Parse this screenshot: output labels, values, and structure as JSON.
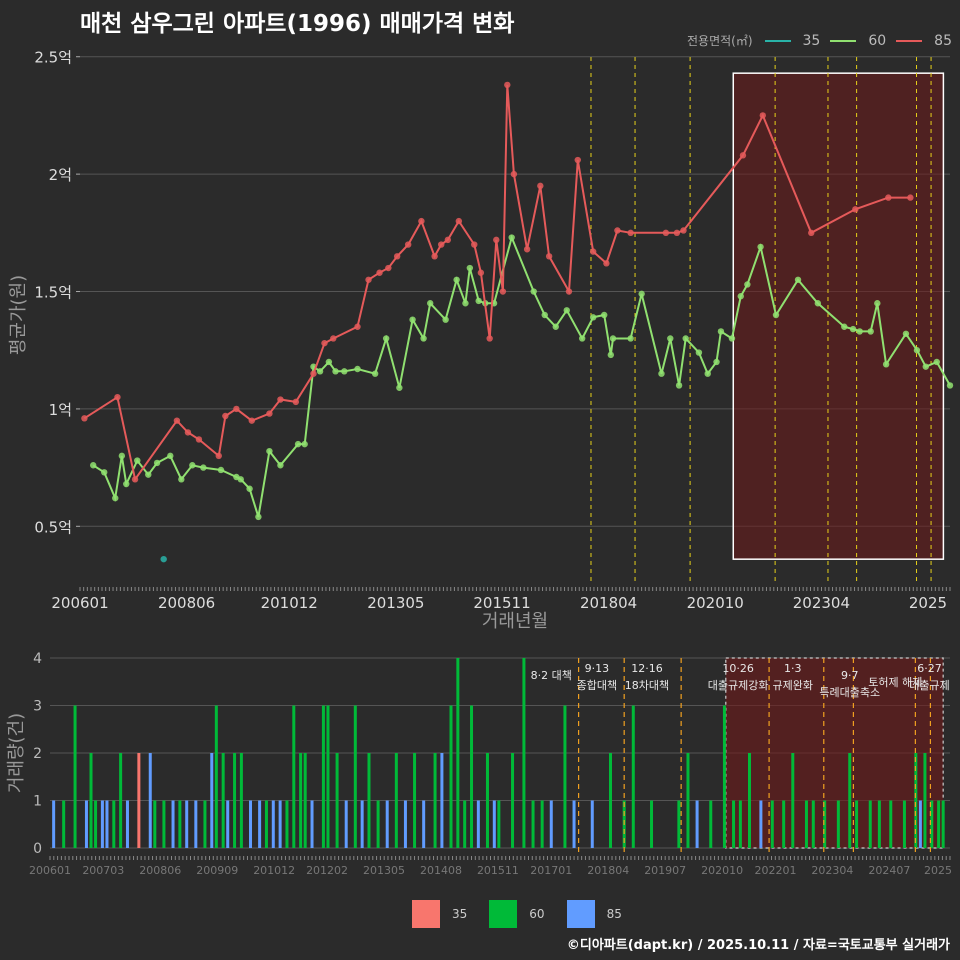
{
  "title": "매천 삼우그린 아파트(1996) 매매가격 변화",
  "footer": "©디아파트(dapt.kr) / 2025.10.11 / 자료=국토교통부 실거래가",
  "colors": {
    "35": "#29b3a8",
    "60": "#90e070",
    "85": "#e55a5a",
    "bar35": "#f8766d",
    "bar60": "#00ba38",
    "bar85": "#619cff"
  },
  "chart_data": [
    {
      "type": "line",
      "title": "매천 삼우그린 아파트(1996) 매매가격 변화",
      "xlabel": "거래년월",
      "ylabel": "평균가(원)",
      "xlim": [
        2006.0,
        2025.75
      ],
      "ylim": [
        0.25,
        2.55
      ],
      "ytick_labels": [
        {
          "v": 0.5,
          "label": "0.5억"
        },
        {
          "v": 1.0,
          "label": "1억"
        },
        {
          "v": 1.5,
          "label": "1.5억"
        },
        {
          "v": 2.0,
          "label": "2억"
        },
        {
          "v": 2.5,
          "label": "2.5억"
        }
      ],
      "xtick_labels": [
        {
          "v": 2006.0,
          "label": "200601"
        },
        {
          "v": 2008.42,
          "label": "200806"
        },
        {
          "v": 2010.75,
          "label": "201012"
        },
        {
          "v": 2013.17,
          "label": "201305"
        },
        {
          "v": 2015.58,
          "label": "201511"
        },
        {
          "v": 2018.0,
          "label": "201804"
        },
        {
          "v": 2020.42,
          "label": "202010"
        },
        {
          "v": 2022.83,
          "label": "202304"
        },
        {
          "v": 2025.25,
          "label": "2025"
        }
      ],
      "legend_title": "전용면적(㎡)",
      "legend": [
        "35",
        "60",
        "85"
      ],
      "series": [
        {
          "name": "35",
          "x": [
            2007.9
          ],
          "y": [
            0.36
          ]
        },
        {
          "name": "60",
          "x": [
            2006.3,
            2006.55,
            2006.8,
            2006.95,
            2007.05,
            2007.3,
            2007.55,
            2007.75,
            2008.05,
            2008.3,
            2008.55,
            2008.8,
            2009.2,
            2009.55,
            2009.65,
            2009.85,
            2010.05,
            2010.3,
            2010.55,
            2010.95,
            2011.1,
            2011.3,
            2011.45,
            2011.65,
            2011.8,
            2012.0,
            2012.3,
            2012.7,
            2012.95,
            2013.25,
            2013.55,
            2013.8,
            2013.95,
            2014.3,
            2014.55,
            2014.75,
            2014.85,
            2015.05,
            2015.2,
            2015.4,
            2015.8,
            2016.3,
            2016.55,
            2016.8,
            2017.05,
            2017.4,
            2017.65,
            2017.9,
            2018.05,
            2018.1,
            2018.5,
            2018.75,
            2019.2,
            2019.4,
            2019.6,
            2019.75,
            2020.05,
            2020.25,
            2020.45,
            2020.55,
            2020.8,
            2021.0,
            2021.15,
            2021.45,
            2021.8,
            2022.3,
            2022.75,
            2023.35,
            2023.55,
            2023.7,
            2023.95,
            2024.1,
            2024.3,
            2024.75,
            2025.0,
            2025.2,
            2025.45,
            2025.75
          ],
          "y": [
            0.76,
            0.73,
            0.62,
            0.8,
            0.68,
            0.78,
            0.72,
            0.77,
            0.8,
            0.7,
            0.76,
            0.75,
            0.74,
            0.71,
            0.7,
            0.66,
            0.54,
            0.82,
            0.76,
            0.85,
            0.85,
            1.18,
            1.16,
            1.2,
            1.16,
            1.16,
            1.17,
            1.15,
            1.3,
            1.09,
            1.38,
            1.3,
            1.45,
            1.38,
            1.55,
            1.45,
            1.6,
            1.46,
            1.45,
            1.45,
            1.73,
            1.5,
            1.4,
            1.35,
            1.42,
            1.3,
            1.39,
            1.4,
            1.23,
            1.3,
            1.3,
            1.49,
            1.15,
            1.3,
            1.1,
            1.3,
            1.24,
            1.15,
            1.2,
            1.33,
            1.3,
            1.48,
            1.53,
            1.69,
            1.4,
            1.55,
            1.45,
            1.35,
            1.34,
            1.33,
            1.33,
            1.45,
            1.19,
            1.32,
            1.25,
            1.18,
            1.2,
            1.1
          ]
        },
        {
          "name": "85",
          "x": [
            2006.1,
            2006.85,
            2007.25,
            2008.2,
            2008.45,
            2008.7,
            2009.15,
            2009.3,
            2009.55,
            2009.9,
            2010.3,
            2010.55,
            2010.9,
            2011.3,
            2011.55,
            2011.75,
            2012.3,
            2012.55,
            2012.8,
            2013.0,
            2013.2,
            2013.45,
            2013.75,
            2014.05,
            2014.2,
            2014.35,
            2014.6,
            2014.95,
            2015.1,
            2015.3,
            2015.45,
            2015.6,
            2015.7,
            2015.85,
            2016.15,
            2016.45,
            2016.65,
            2017.1,
            2017.3,
            2017.65,
            2017.95,
            2018.2,
            2018.5,
            2019.3,
            2019.55,
            2019.7,
            2021.05,
            2021.5,
            2022.6,
            2023.6,
            2024.35,
            2024.85
          ],
          "y": [
            0.96,
            1.05,
            0.7,
            0.95,
            0.9,
            0.87,
            0.8,
            0.97,
            1.0,
            0.95,
            0.98,
            1.04,
            1.03,
            1.15,
            1.28,
            1.3,
            1.35,
            1.55,
            1.58,
            1.6,
            1.65,
            1.7,
            1.8,
            1.65,
            1.7,
            1.72,
            1.8,
            1.7,
            1.58,
            1.3,
            1.72,
            1.5,
            2.38,
            2.0,
            1.68,
            1.95,
            1.65,
            1.5,
            2.06,
            1.67,
            1.62,
            1.76,
            1.75,
            1.75,
            1.75,
            1.76,
            2.08,
            2.25,
            1.75,
            1.85,
            1.9,
            1.9
          ]
        }
      ],
      "vlines_x": [
        2017.6,
        2018.6,
        2019.85,
        2021.78,
        2022.98,
        2023.63,
        2024.99,
        2025.32
      ],
      "highlight_box": {
        "x0": 2020.83,
        "x1": 2025.6,
        "y0": 0.36,
        "y1": 2.43
      }
    },
    {
      "type": "bar",
      "ylabel": "거래량(건)",
      "ylim": [
        0,
        4
      ],
      "ytick_labels": [
        "0",
        "1",
        "2",
        "3",
        "4"
      ],
      "xtick_labels": [
        {
          "v": 2006.0,
          "label": "200601"
        },
        {
          "v": 2007.17,
          "label": "200703"
        },
        {
          "v": 2008.42,
          "label": "200806"
        },
        {
          "v": 2009.67,
          "label": "200909"
        },
        {
          "v": 2010.92,
          "label": "201012"
        },
        {
          "v": 2012.08,
          "label": "201202"
        },
        {
          "v": 2013.33,
          "label": "201305"
        },
        {
          "v": 2014.58,
          "label": "201408"
        },
        {
          "v": 2015.83,
          "label": "201511"
        },
        {
          "v": 2017.0,
          "label": "201701"
        },
        {
          "v": 2018.25,
          "label": "201804"
        },
        {
          "v": 2019.5,
          "label": "201907"
        },
        {
          "v": 2020.75,
          "label": "202010"
        },
        {
          "v": 2021.92,
          "label": "202201"
        },
        {
          "v": 2023.17,
          "label": "202304"
        },
        {
          "v": 2024.42,
          "label": "202407"
        },
        {
          "v": 2025.6,
          "label": "2025"
        }
      ],
      "legend": [
        "35",
        "60",
        "85"
      ],
      "bars": [
        {
          "s": "85",
          "x": 2006.08,
          "v": 1
        },
        {
          "s": "60",
          "x": 2006.3,
          "v": 1
        },
        {
          "s": "60",
          "x": 2006.55,
          "v": 3
        },
        {
          "s": "85",
          "x": 2006.8,
          "v": 1
        },
        {
          "s": "60",
          "x": 2006.9,
          "v": 2
        },
        {
          "s": "60",
          "x": 2007.0,
          "v": 1
        },
        {
          "s": "85",
          "x": 2007.15,
          "v": 1
        },
        {
          "s": "85",
          "x": 2007.25,
          "v": 1
        },
        {
          "s": "60",
          "x": 2007.4,
          "v": 1
        },
        {
          "s": "60",
          "x": 2007.55,
          "v": 2
        },
        {
          "s": "85",
          "x": 2007.7,
          "v": 1
        },
        {
          "s": "35",
          "x": 2007.95,
          "v": 2
        },
        {
          "s": "85",
          "x": 2008.2,
          "v": 2
        },
        {
          "s": "60",
          "x": 2008.3,
          "v": 1
        },
        {
          "s": "60",
          "x": 2008.5,
          "v": 1
        },
        {
          "s": "85",
          "x": 2008.7,
          "v": 1
        },
        {
          "s": "60",
          "x": 2008.85,
          "v": 1
        },
        {
          "s": "85",
          "x": 2009.0,
          "v": 1
        },
        {
          "s": "85",
          "x": 2009.2,
          "v": 1
        },
        {
          "s": "60",
          "x": 2009.4,
          "v": 1
        },
        {
          "s": "85",
          "x": 2009.55,
          "v": 2
        },
        {
          "s": "60",
          "x": 2009.65,
          "v": 3
        },
        {
          "s": "60",
          "x": 2009.8,
          "v": 2
        },
        {
          "s": "85",
          "x": 2009.9,
          "v": 1
        },
        {
          "s": "60",
          "x": 2010.05,
          "v": 2
        },
        {
          "s": "60",
          "x": 2010.2,
          "v": 2
        },
        {
          "s": "85",
          "x": 2010.4,
          "v": 1
        },
        {
          "s": "85",
          "x": 2010.6,
          "v": 1
        },
        {
          "s": "60",
          "x": 2010.75,
          "v": 1
        },
        {
          "s": "85",
          "x": 2010.9,
          "v": 1
        },
        {
          "s": "85",
          "x": 2011.05,
          "v": 1
        },
        {
          "s": "60",
          "x": 2011.2,
          "v": 1
        },
        {
          "s": "60",
          "x": 2011.35,
          "v": 3
        },
        {
          "s": "60",
          "x": 2011.5,
          "v": 2
        },
        {
          "s": "60",
          "x": 2011.6,
          "v": 2
        },
        {
          "s": "85",
          "x": 2011.75,
          "v": 1
        },
        {
          "s": "60",
          "x": 2012.0,
          "v": 3
        },
        {
          "s": "60",
          "x": 2012.1,
          "v": 3
        },
        {
          "s": "60",
          "x": 2012.3,
          "v": 2
        },
        {
          "s": "85",
          "x": 2012.5,
          "v": 1
        },
        {
          "s": "60",
          "x": 2012.7,
          "v": 3
        },
        {
          "s": "85",
          "x": 2012.85,
          "v": 1
        },
        {
          "s": "60",
          "x": 2013.0,
          "v": 2
        },
        {
          "s": "60",
          "x": 2013.2,
          "v": 1
        },
        {
          "s": "85",
          "x": 2013.4,
          "v": 1
        },
        {
          "s": "60",
          "x": 2013.6,
          "v": 2
        },
        {
          "s": "85",
          "x": 2013.8,
          "v": 1
        },
        {
          "s": "60",
          "x": 2014.0,
          "v": 2
        },
        {
          "s": "85",
          "x": 2014.2,
          "v": 1
        },
        {
          "s": "60",
          "x": 2014.45,
          "v": 2
        },
        {
          "s": "85",
          "x": 2014.6,
          "v": 2
        },
        {
          "s": "60",
          "x": 2014.8,
          "v": 3
        },
        {
          "s": "60",
          "x": 2014.95,
          "v": 4
        },
        {
          "s": "60",
          "x": 2015.1,
          "v": 1
        },
        {
          "s": "60",
          "x": 2015.25,
          "v": 3
        },
        {
          "s": "85",
          "x": 2015.4,
          "v": 1
        },
        {
          "s": "60",
          "x": 2015.6,
          "v": 2
        },
        {
          "s": "85",
          "x": 2015.75,
          "v": 1
        },
        {
          "s": "60",
          "x": 2015.85,
          "v": 1
        },
        {
          "s": "60",
          "x": 2016.15,
          "v": 2
        },
        {
          "s": "60",
          "x": 2016.4,
          "v": 4
        },
        {
          "s": "60",
          "x": 2016.6,
          "v": 1
        },
        {
          "s": "60",
          "x": 2016.8,
          "v": 1
        },
        {
          "s": "85",
          "x": 2017.0,
          "v": 1
        },
        {
          "s": "60",
          "x": 2017.3,
          "v": 3
        },
        {
          "s": "85",
          "x": 2017.5,
          "v": 1
        },
        {
          "s": "85",
          "x": 2017.9,
          "v": 1
        },
        {
          "s": "60",
          "x": 2018.3,
          "v": 2
        },
        {
          "s": "60",
          "x": 2018.6,
          "v": 1
        },
        {
          "s": "60",
          "x": 2018.8,
          "v": 3
        },
        {
          "s": "60",
          "x": 2019.2,
          "v": 1
        },
        {
          "s": "60",
          "x": 2019.8,
          "v": 1
        },
        {
          "s": "60",
          "x": 2020.0,
          "v": 2
        },
        {
          "s": "85",
          "x": 2020.2,
          "v": 1
        },
        {
          "s": "60",
          "x": 2020.5,
          "v": 1
        },
        {
          "s": "60",
          "x": 2020.8,
          "v": 3
        },
        {
          "s": "60",
          "x": 2021.0,
          "v": 1
        },
        {
          "s": "60",
          "x": 2021.15,
          "v": 1
        },
        {
          "s": "60",
          "x": 2021.35,
          "v": 2
        },
        {
          "s": "85",
          "x": 2021.6,
          "v": 1
        },
        {
          "s": "60",
          "x": 2021.85,
          "v": 1
        },
        {
          "s": "60",
          "x": 2022.1,
          "v": 1
        },
        {
          "s": "60",
          "x": 2022.3,
          "v": 2
        },
        {
          "s": "60",
          "x": 2022.6,
          "v": 1
        },
        {
          "s": "60",
          "x": 2022.75,
          "v": 1
        },
        {
          "s": "60",
          "x": 2023.0,
          "v": 1
        },
        {
          "s": "60",
          "x": 2023.3,
          "v": 1
        },
        {
          "s": "60",
          "x": 2023.55,
          "v": 2
        },
        {
          "s": "60",
          "x": 2023.7,
          "v": 1
        },
        {
          "s": "60",
          "x": 2024.0,
          "v": 1
        },
        {
          "s": "60",
          "x": 2024.2,
          "v": 1
        },
        {
          "s": "60",
          "x": 2024.45,
          "v": 1
        },
        {
          "s": "60",
          "x": 2024.75,
          "v": 1
        },
        {
          "s": "60",
          "x": 2025.0,
          "v": 2
        },
        {
          "s": "85",
          "x": 2025.1,
          "v": 1
        },
        {
          "s": "60",
          "x": 2025.2,
          "v": 2
        },
        {
          "s": "60",
          "x": 2025.35,
          "v": 1
        },
        {
          "s": "60",
          "x": 2025.5,
          "v": 1
        },
        {
          "s": "60",
          "x": 2025.6,
          "v": 1
        }
      ],
      "vlines_x": [
        2017.6,
        2018.6,
        2019.85,
        2021.78,
        2022.98,
        2023.63,
        2024.99,
        2025.32
      ],
      "highlight_box": {
        "x0": 2020.83,
        "x1": 2025.6
      },
      "annotations": [
        {
          "x": 2017.0,
          "lines": [
            "8·2 대책"
          ],
          "tier": 1
        },
        {
          "x": 2018.0,
          "lines": [
            "9·13",
            "종합대책"
          ],
          "tier": 0
        },
        {
          "x": 2019.1,
          "lines": [
            "12·16",
            "18차대책"
          ],
          "tier": 0
        },
        {
          "x": 2021.1,
          "lines": [
            "10·26",
            "대출규제강화"
          ],
          "tier": 0
        },
        {
          "x": 2022.3,
          "lines": [
            "1·3",
            "규제완화"
          ],
          "tier": 0
        },
        {
          "x": 2023.55,
          "lines": [
            "9·7",
            "특례대출축소"
          ],
          "tier": 1
        },
        {
          "x": 2024.55,
          "lines": [
            "토허제 해제"
          ],
          "tier": 2
        },
        {
          "x": 2025.3,
          "lines": [
            "6·27",
            "대출규제"
          ],
          "tier": 0
        }
      ]
    }
  ]
}
